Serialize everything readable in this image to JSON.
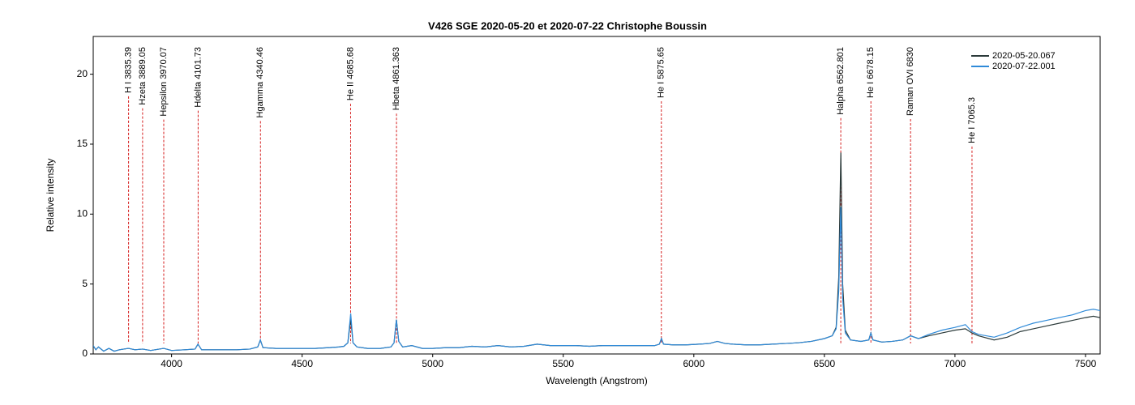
{
  "chart_data": {
    "type": "line",
    "title": "V426 SGE   2020-05-20 et 2020-07-22   Christophe Boussin",
    "x_label": "Wavelength (Angstrom)",
    "y_label": "Relative intensity",
    "xlim": [
      3700,
      7556
    ],
    "ylim": [
      0,
      22.7
    ],
    "xticks": [
      4000,
      4500,
      5000,
      5500,
      6000,
      6500,
      7000,
      7500
    ],
    "yticks": [
      0,
      5,
      10,
      15,
      20
    ],
    "legend": "upper right",
    "annotation_color": "#d62020",
    "annotations": [
      {
        "x": 3835.39,
        "label": "H I 3835.39"
      },
      {
        "x": 3889.05,
        "label": "Hzeta 3889.05"
      },
      {
        "x": 3970.07,
        "label": "Hepsilon 3970.07"
      },
      {
        "x": 4101.73,
        "label": "Hdelta 4101.73"
      },
      {
        "x": 4340.46,
        "label": "Hgamma 4340.46"
      },
      {
        "x": 4685.68,
        "label": "He II 4685.68"
      },
      {
        "x": 4861.363,
        "label": "Hbeta 4861.363"
      },
      {
        "x": 5875.65,
        "label": "He I 5875.65"
      },
      {
        "x": 6562.801,
        "label": "Halpha 6562.801"
      },
      {
        "x": 6678.15,
        "label": "He I 6678.15"
      },
      {
        "x": 6830,
        "label": "Raman OVI 6830"
      },
      {
        "x": 7065.3,
        "label": "He I 7065.3"
      }
    ],
    "x": [
      3700,
      3710,
      3720,
      3740,
      3760,
      3780,
      3800,
      3835,
      3860,
      3889,
      3920,
      3970,
      4000,
      4050,
      4090,
      4101,
      4115,
      4150,
      4200,
      4250,
      4300,
      4330,
      4340,
      4350,
      4400,
      4450,
      4500,
      4550,
      4600,
      4640,
      4660,
      4675,
      4686,
      4695,
      4710,
      4750,
      4800,
      4840,
      4852,
      4861,
      4870,
      4885,
      4920,
      4960,
      5000,
      5050,
      5100,
      5150,
      5200,
      5250,
      5300,
      5350,
      5400,
      5450,
      5500,
      5550,
      5600,
      5650,
      5700,
      5750,
      5800,
      5850,
      5868,
      5876,
      5884,
      5920,
      5970,
      6020,
      6060,
      6090,
      6120,
      6150,
      6200,
      6250,
      6300,
      6350,
      6400,
      6450,
      6500,
      6530,
      6545,
      6555,
      6563,
      6570,
      6580,
      6600,
      6640,
      6670,
      6678,
      6686,
      6720,
      6760,
      6800,
      6830,
      6860,
      6900,
      6950,
      7000,
      7040,
      7065,
      7090,
      7150,
      7200,
      7250,
      7300,
      7350,
      7400,
      7450,
      7500,
      7530,
      7556
    ],
    "series": [
      {
        "name": "2020-05-20.067",
        "color": "#2b3a3a",
        "values": [
          0.6,
          0.3,
          0.5,
          0.2,
          0.4,
          0.2,
          0.3,
          0.4,
          0.3,
          0.35,
          0.25,
          0.4,
          0.25,
          0.3,
          0.35,
          0.7,
          0.3,
          0.3,
          0.3,
          0.3,
          0.35,
          0.5,
          1.0,
          0.45,
          0.4,
          0.4,
          0.4,
          0.4,
          0.45,
          0.5,
          0.55,
          0.8,
          2.5,
          0.8,
          0.5,
          0.4,
          0.4,
          0.5,
          0.8,
          2.45,
          0.9,
          0.5,
          0.6,
          0.4,
          0.4,
          0.45,
          0.45,
          0.55,
          0.5,
          0.6,
          0.5,
          0.55,
          0.7,
          0.6,
          0.6,
          0.6,
          0.55,
          0.6,
          0.6,
          0.6,
          0.6,
          0.6,
          0.7,
          1.1,
          0.7,
          0.65,
          0.65,
          0.7,
          0.75,
          0.9,
          0.75,
          0.7,
          0.65,
          0.65,
          0.7,
          0.75,
          0.8,
          0.9,
          1.1,
          1.3,
          1.9,
          5.5,
          14.4,
          5.0,
          1.7,
          1.0,
          0.9,
          1.0,
          1.5,
          1.0,
          0.85,
          0.9,
          1.0,
          1.3,
          1.1,
          1.3,
          1.5,
          1.7,
          1.8,
          1.5,
          1.3,
          1.0,
          1.2,
          1.6,
          1.8,
          2.0,
          2.2,
          2.4,
          2.6,
          2.7,
          2.6
        ]
      },
      {
        "name": "2020-07-22.001",
        "color": "#2f8ad8",
        "values": [
          0.6,
          0.3,
          0.5,
          0.2,
          0.4,
          0.2,
          0.3,
          0.4,
          0.3,
          0.35,
          0.25,
          0.4,
          0.25,
          0.3,
          0.35,
          0.7,
          0.3,
          0.3,
          0.3,
          0.3,
          0.35,
          0.5,
          1.0,
          0.45,
          0.4,
          0.4,
          0.4,
          0.4,
          0.45,
          0.5,
          0.55,
          0.8,
          2.9,
          0.8,
          0.5,
          0.4,
          0.4,
          0.5,
          0.8,
          2.45,
          0.9,
          0.5,
          0.6,
          0.4,
          0.4,
          0.45,
          0.45,
          0.55,
          0.5,
          0.6,
          0.5,
          0.55,
          0.7,
          0.6,
          0.6,
          0.6,
          0.55,
          0.6,
          0.6,
          0.6,
          0.6,
          0.6,
          0.7,
          1.1,
          0.7,
          0.65,
          0.65,
          0.7,
          0.75,
          0.9,
          0.75,
          0.7,
          0.65,
          0.65,
          0.7,
          0.75,
          0.8,
          0.9,
          1.1,
          1.3,
          1.8,
          4.5,
          10.5,
          4.0,
          1.5,
          1.0,
          0.9,
          1.0,
          1.5,
          1.0,
          0.85,
          0.9,
          1.0,
          1.3,
          1.1,
          1.4,
          1.7,
          1.9,
          2.1,
          1.6,
          1.4,
          1.2,
          1.5,
          1.9,
          2.2,
          2.4,
          2.6,
          2.8,
          3.1,
          3.2,
          3.1
        ]
      }
    ]
  }
}
